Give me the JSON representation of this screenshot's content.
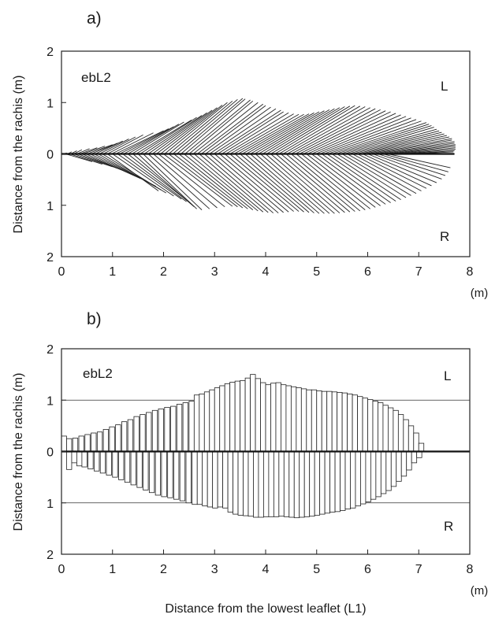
{
  "chart_data": [
    {
      "type": "line",
      "panel_label": "a)",
      "id_label": "ebL2",
      "side_top": "L",
      "side_bottom": "R",
      "xlabel": "",
      "ylabel": "Distance from the rachis (m)",
      "x_unit": "(m)",
      "xlim": [
        0,
        8
      ],
      "ylim": [
        -2,
        2
      ],
      "x_ticks": [
        "0",
        "1",
        "2",
        "3",
        "4",
        "5",
        "6",
        "7",
        "8"
      ],
      "y_ticks": [
        "2",
        "1",
        "0",
        "1",
        "2"
      ],
      "rachis_length": 7.7,
      "left_leaflets": [
        [
          0.06,
          0.1,
          0.02,
          0.01
        ],
        [
          0.12,
          0.2,
          0.04,
          0.02
        ],
        [
          0.18,
          0.3,
          0.06,
          0.03
        ],
        [
          0.24,
          0.4,
          0.08,
          0.04
        ],
        [
          0.3,
          0.55,
          0.1,
          0.06
        ],
        [
          0.36,
          0.7,
          0.12,
          0.08
        ],
        [
          0.42,
          0.85,
          0.15,
          0.1
        ],
        [
          0.5,
          1.0,
          0.18,
          0.12
        ],
        [
          0.58,
          1.1,
          0.21,
          0.14
        ],
        [
          0.66,
          1.2,
          0.25,
          0.16
        ],
        [
          0.74,
          1.32,
          0.29,
          0.18
        ],
        [
          0.82,
          1.45,
          0.33,
          0.2
        ],
        [
          0.9,
          1.6,
          0.37,
          0.22
        ],
        [
          0.98,
          1.8,
          0.41,
          0.24
        ],
        [
          1.06,
          2.0,
          0.45,
          0.26
        ],
        [
          1.14,
          2.1,
          0.49,
          0.28
        ],
        [
          1.22,
          2.2,
          0.53,
          0.3
        ],
        [
          1.3,
          2.3,
          0.58,
          0.32
        ],
        [
          1.38,
          2.4,
          0.62,
          0.34
        ],
        [
          1.46,
          2.55,
          0.66,
          0.36
        ],
        [
          1.54,
          2.65,
          0.71,
          0.38
        ],
        [
          1.62,
          2.75,
          0.75,
          0.4
        ],
        [
          1.7,
          2.85,
          0.8,
          0.42
        ],
        [
          1.78,
          2.95,
          0.85,
          0.44
        ],
        [
          1.86,
          3.05,
          0.9,
          0.46
        ],
        [
          1.94,
          3.15,
          0.95,
          0.48
        ],
        [
          2.02,
          3.25,
          1.0,
          0.5
        ],
        [
          2.1,
          3.35,
          1.03,
          0.52
        ],
        [
          2.18,
          3.45,
          1.06,
          0.54
        ],
        [
          2.26,
          3.55,
          1.08,
          0.56
        ],
        [
          2.34,
          3.6,
          1.07,
          0.58
        ],
        [
          2.42,
          3.7,
          1.05,
          0.6
        ],
        [
          2.5,
          3.75,
          1.03,
          0.62
        ],
        [
          2.58,
          3.85,
          1.0,
          0.64
        ],
        [
          2.66,
          3.95,
          0.97,
          0.66
        ],
        [
          2.74,
          4.0,
          0.94,
          0.68
        ],
        [
          2.82,
          4.1,
          0.91,
          0.7
        ],
        [
          2.9,
          4.2,
          0.88,
          0.72
        ],
        [
          2.98,
          4.3,
          0.85,
          0.74
        ],
        [
          3.06,
          4.35,
          0.82,
          0.76
        ],
        [
          3.14,
          4.45,
          0.8,
          0.78
        ],
        [
          3.22,
          4.55,
          0.78,
          0.8
        ],
        [
          3.3,
          4.65,
          0.77,
          0.82
        ],
        [
          3.38,
          4.75,
          0.77,
          0.84
        ],
        [
          3.46,
          4.85,
          0.78,
          0.86
        ],
        [
          3.54,
          4.95,
          0.8,
          0.88
        ],
        [
          3.62,
          5.05,
          0.82,
          0.9
        ],
        [
          3.7,
          5.15,
          0.84,
          0.92
        ],
        [
          3.78,
          5.25,
          0.86,
          0.94
        ],
        [
          3.86,
          5.35,
          0.88,
          0.96
        ],
        [
          3.94,
          5.45,
          0.9,
          0.98
        ],
        [
          4.02,
          5.55,
          0.92,
          1.0
        ],
        [
          4.1,
          5.65,
          0.93,
          1.02
        ],
        [
          4.18,
          5.75,
          0.94,
          1.04
        ],
        [
          4.26,
          5.85,
          0.93,
          1.06
        ],
        [
          4.34,
          5.95,
          0.92,
          1.08
        ],
        [
          4.42,
          6.05,
          0.9,
          1.1
        ],
        [
          4.5,
          6.15,
          0.88,
          1.12
        ],
        [
          4.58,
          6.25,
          0.86,
          1.14
        ],
        [
          4.66,
          6.35,
          0.84,
          1.16
        ],
        [
          4.74,
          6.45,
          0.82,
          1.18
        ],
        [
          4.82,
          6.55,
          0.79,
          1.2
        ],
        [
          4.9,
          6.65,
          0.76,
          1.22
        ],
        [
          4.98,
          6.75,
          0.73,
          1.24
        ],
        [
          5.06,
          6.85,
          0.7,
          1.26
        ],
        [
          5.14,
          6.95,
          0.67,
          1.28
        ],
        [
          5.22,
          7.05,
          0.64,
          1.3
        ],
        [
          5.3,
          7.15,
          0.61,
          1.32
        ],
        [
          5.38,
          7.2,
          0.58,
          1.34
        ],
        [
          5.46,
          7.25,
          0.55,
          1.36
        ],
        [
          5.54,
          7.3,
          0.52,
          1.38
        ],
        [
          5.62,
          7.35,
          0.48,
          1.4
        ],
        [
          5.7,
          7.4,
          0.45,
          1.42
        ],
        [
          5.78,
          7.45,
          0.42,
          1.44
        ],
        [
          5.86,
          7.5,
          0.39,
          1.46
        ],
        [
          5.94,
          7.55,
          0.36,
          1.48
        ],
        [
          6.02,
          7.6,
          0.33,
          1.5
        ],
        [
          6.1,
          7.65,
          0.3,
          1.52
        ],
        [
          6.18,
          7.65,
          0.27,
          1.54
        ],
        [
          6.26,
          7.7,
          0.24,
          1.56
        ],
        [
          6.34,
          7.7,
          0.21,
          1.58
        ],
        [
          6.42,
          7.72,
          0.18,
          1.6
        ],
        [
          6.5,
          7.72,
          0.15,
          1.62
        ],
        [
          6.58,
          7.72,
          0.12,
          1.64
        ],
        [
          6.66,
          7.72,
          0.09,
          1.66
        ],
        [
          6.74,
          7.7,
          0.06,
          1.68
        ],
        [
          6.82,
          7.68,
          0.04,
          1.7
        ]
      ],
      "right_leaflets": [
        [
          0.08,
          0.6,
          -0.15,
          0.05
        ],
        [
          0.16,
          0.8,
          -0.2,
          0.08
        ],
        [
          0.24,
          1.0,
          -0.25,
          0.11
        ],
        [
          0.32,
          1.2,
          -0.32,
          0.14
        ],
        [
          0.4,
          1.4,
          -0.4,
          0.17
        ],
        [
          0.48,
          1.55,
          -0.48,
          0.2
        ],
        [
          0.56,
          1.7,
          -0.55,
          0.23
        ],
        [
          0.64,
          1.85,
          -0.63,
          0.26
        ],
        [
          0.72,
          1.95,
          -0.7,
          0.29
        ],
        [
          0.8,
          2.05,
          -0.76,
          0.32
        ],
        [
          0.9,
          1.9,
          -0.72,
          0.35
        ],
        [
          1.0,
          2.2,
          -0.82,
          0.38
        ],
        [
          1.1,
          2.35,
          -0.88,
          0.41
        ],
        [
          1.2,
          2.45,
          -0.93,
          0.44
        ],
        [
          1.3,
          2.55,
          -0.98,
          0.47
        ],
        [
          1.4,
          2.6,
          -1.03,
          0.5
        ],
        [
          1.5,
          2.65,
          -1.07,
          0.53
        ],
        [
          1.6,
          2.75,
          -1.09,
          0.56
        ],
        [
          1.7,
          2.9,
          -1.07,
          0.59
        ],
        [
          1.8,
          3.05,
          -1.05,
          0.62
        ],
        [
          1.9,
          3.2,
          -1.03,
          0.65
        ],
        [
          2.0,
          3.35,
          -1.02,
          0.68
        ],
        [
          2.1,
          3.45,
          -1.03,
          0.71
        ],
        [
          2.2,
          3.55,
          -1.05,
          0.74
        ],
        [
          2.3,
          3.65,
          -1.07,
          0.77
        ],
        [
          2.4,
          3.75,
          -1.09,
          0.8
        ],
        [
          2.5,
          3.85,
          -1.11,
          0.83
        ],
        [
          2.6,
          3.95,
          -1.13,
          0.86
        ],
        [
          2.7,
          4.05,
          -1.14,
          0.89
        ],
        [
          2.8,
          4.15,
          -1.15,
          0.92
        ],
        [
          2.9,
          4.25,
          -1.15,
          0.95
        ],
        [
          3.0,
          4.35,
          -1.14,
          0.98
        ],
        [
          3.1,
          4.45,
          -1.13,
          1.01
        ],
        [
          3.2,
          4.55,
          -1.12,
          1.04
        ],
        [
          3.3,
          4.65,
          -1.12,
          1.07
        ],
        [
          3.4,
          4.75,
          -1.13,
          1.1
        ],
        [
          3.5,
          4.85,
          -1.14,
          1.13
        ],
        [
          3.6,
          4.95,
          -1.15,
          1.16
        ],
        [
          3.7,
          5.05,
          -1.16,
          1.19
        ],
        [
          3.8,
          5.15,
          -1.16,
          1.22
        ],
        [
          3.9,
          5.25,
          -1.16,
          1.25
        ],
        [
          4.0,
          5.35,
          -1.16,
          1.28
        ],
        [
          4.1,
          5.45,
          -1.15,
          1.31
        ],
        [
          4.2,
          5.55,
          -1.14,
          1.34
        ],
        [
          4.3,
          5.65,
          -1.13,
          1.37
        ],
        [
          4.4,
          5.75,
          -1.12,
          1.4
        ],
        [
          4.5,
          5.85,
          -1.11,
          1.43
        ],
        [
          4.6,
          5.95,
          -1.09,
          1.46
        ],
        [
          4.7,
          6.05,
          -1.07,
          1.49
        ],
        [
          4.8,
          6.15,
          -1.04,
          1.52
        ],
        [
          4.9,
          6.25,
          -1.01,
          1.55
        ],
        [
          5.0,
          6.35,
          -0.98,
          1.58
        ],
        [
          5.1,
          6.45,
          -0.95,
          1.61
        ],
        [
          5.2,
          6.55,
          -0.92,
          1.64
        ],
        [
          5.3,
          6.65,
          -0.89,
          1.67
        ],
        [
          5.4,
          6.75,
          -0.85,
          1.7
        ],
        [
          5.5,
          6.85,
          -0.81,
          1.73
        ],
        [
          5.6,
          6.95,
          -0.77,
          1.76
        ],
        [
          5.7,
          7.05,
          -0.72,
          1.79
        ],
        [
          5.8,
          7.15,
          -0.67,
          1.82
        ],
        [
          5.9,
          7.25,
          -0.62,
          1.85
        ],
        [
          6.0,
          7.35,
          -0.56,
          1.88
        ],
        [
          6.1,
          7.45,
          -0.49,
          1.91
        ],
        [
          6.2,
          7.52,
          -0.42,
          1.94
        ],
        [
          6.3,
          7.58,
          -0.35,
          1.97
        ],
        [
          6.4,
          7.62,
          -0.27,
          2.0
        ]
      ]
    },
    {
      "type": "bar",
      "panel_label": "b)",
      "id_label": "ebL2",
      "side_top": "L",
      "side_bottom": "R",
      "xlabel": "Distance from the lowest leaflet (L1)",
      "ylabel": "Distance from the rachis (m)",
      "x_unit": "(m)",
      "xlim": [
        0,
        8
      ],
      "ylim": [
        -2,
        2
      ],
      "x_ticks": [
        "0",
        "1",
        "2",
        "3",
        "4",
        "5",
        "6",
        "7",
        "8"
      ],
      "y_ticks": [
        "2",
        "1",
        "0",
        "1",
        "2"
      ],
      "reference_lines": [
        1,
        -1
      ],
      "bar_width": 0.1,
      "left_x": [
        0.05,
        0.15,
        0.27,
        0.39,
        0.51,
        0.63,
        0.75,
        0.87,
        0.99,
        1.11,
        1.23,
        1.35,
        1.47,
        1.59,
        1.71,
        1.83,
        1.95,
        2.07,
        2.19,
        2.31,
        2.43,
        2.55,
        2.65,
        2.75,
        2.85,
        2.95,
        3.05,
        3.15,
        3.25,
        3.35,
        3.45,
        3.55,
        3.65,
        3.75,
        3.85,
        3.95,
        4.05,
        4.15,
        4.25,
        4.35,
        4.45,
        4.55,
        4.65,
        4.75,
        4.85,
        4.95,
        5.05,
        5.15,
        5.25,
        5.35,
        5.45,
        5.55,
        5.65,
        5.75,
        5.85,
        5.95,
        6.05,
        6.15,
        6.25,
        6.35,
        6.45,
        6.55,
        6.65,
        6.75,
        6.85,
        6.95,
        7.05
      ],
      "left_values": [
        0.3,
        0.25,
        0.26,
        0.3,
        0.33,
        0.36,
        0.38,
        0.43,
        0.48,
        0.52,
        0.58,
        0.62,
        0.68,
        0.72,
        0.76,
        0.8,
        0.83,
        0.86,
        0.88,
        0.92,
        0.95,
        0.98,
        1.1,
        1.12,
        1.16,
        1.2,
        1.24,
        1.28,
        1.32,
        1.35,
        1.37,
        1.38,
        1.43,
        1.5,
        1.42,
        1.34,
        1.3,
        1.33,
        1.34,
        1.3,
        1.28,
        1.26,
        1.24,
        1.22,
        1.2,
        1.2,
        1.18,
        1.17,
        1.17,
        1.16,
        1.15,
        1.14,
        1.12,
        1.1,
        1.07,
        1.04,
        1.01,
        0.98,
        0.95,
        0.9,
        0.85,
        0.8,
        0.72,
        0.62,
        0.5,
        0.36,
        0.16
      ],
      "right_x": [
        0.15,
        0.25,
        0.35,
        0.45,
        0.57,
        0.69,
        0.81,
        0.93,
        1.05,
        1.17,
        1.29,
        1.41,
        1.53,
        1.65,
        1.77,
        1.89,
        2.01,
        2.13,
        2.25,
        2.37,
        2.49,
        2.61,
        2.71,
        2.81,
        2.91,
        3.01,
        3.11,
        3.21,
        3.31,
        3.41,
        3.51,
        3.61,
        3.71,
        3.81,
        3.91,
        4.01,
        4.11,
        4.21,
        4.31,
        4.41,
        4.51,
        4.61,
        4.71,
        4.81,
        4.91,
        5.01,
        5.11,
        5.21,
        5.31,
        5.41,
        5.51,
        5.61,
        5.71,
        5.81,
        5.91,
        6.01,
        6.11,
        6.21,
        6.31,
        6.41,
        6.51,
        6.61,
        6.71,
        6.81,
        6.91,
        7.01
      ],
      "right_values": [
        0.35,
        0.22,
        0.28,
        0.3,
        0.34,
        0.38,
        0.42,
        0.46,
        0.5,
        0.55,
        0.6,
        0.65,
        0.7,
        0.75,
        0.8,
        0.85,
        0.88,
        0.9,
        0.93,
        0.96,
        1.0,
        1.03,
        1.03,
        1.06,
        1.08,
        1.1,
        1.08,
        1.1,
        1.18,
        1.22,
        1.24,
        1.25,
        1.26,
        1.28,
        1.28,
        1.27,
        1.27,
        1.27,
        1.26,
        1.27,
        1.28,
        1.29,
        1.28,
        1.27,
        1.26,
        1.24,
        1.22,
        1.2,
        1.18,
        1.17,
        1.15,
        1.12,
        1.1,
        1.06,
        1.02,
        0.98,
        0.93,
        0.88,
        0.82,
        0.76,
        0.68,
        0.58,
        0.48,
        0.36,
        0.22,
        0.12
      ]
    }
  ]
}
